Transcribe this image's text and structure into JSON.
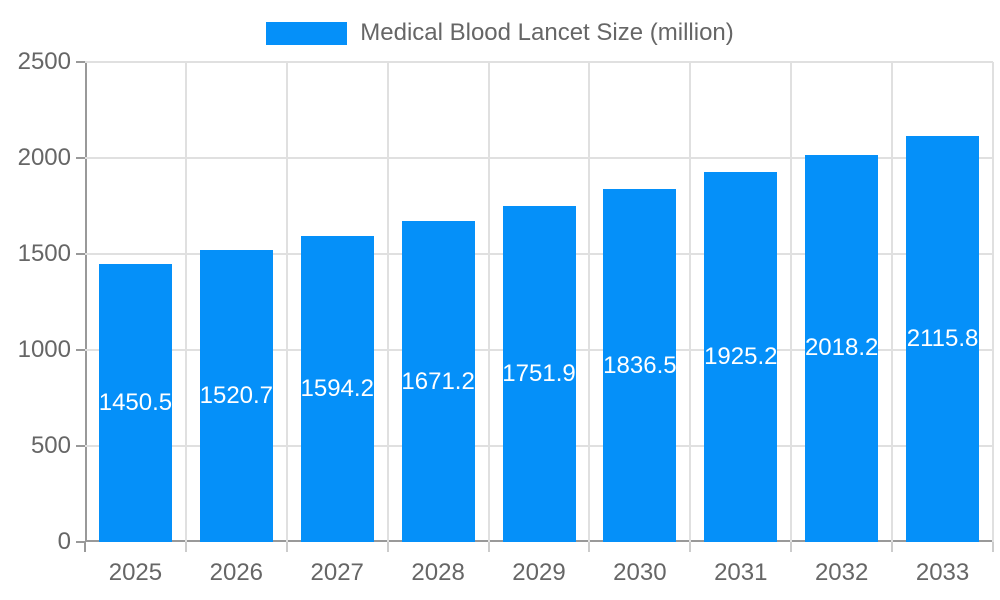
{
  "chart_data": {
    "type": "bar",
    "title": "",
    "categories": [
      "2025",
      "2026",
      "2027",
      "2028",
      "2029",
      "2030",
      "2031",
      "2032",
      "2033"
    ],
    "series": [
      {
        "name": "Medical Blood Lancet Size (million)",
        "values": [
          1450.5,
          1520.7,
          1594.2,
          1671.2,
          1751.9,
          1836.5,
          1925.2,
          2018.2,
          2115.8
        ]
      }
    ],
    "xlabel": "",
    "ylabel": "",
    "ylim": [
      0,
      2500
    ],
    "yticks": [
      0,
      500,
      1000,
      1500,
      2000,
      2500
    ],
    "grid": true,
    "legend_position": "top",
    "value_labels": "inside-center"
  },
  "colors": {
    "bar": "#0590f9",
    "axis_text": "#666666",
    "value_label": "#ffffff",
    "grid_line": "#e0e0e0",
    "axis_line": "#999999",
    "background": "#ffffff"
  }
}
